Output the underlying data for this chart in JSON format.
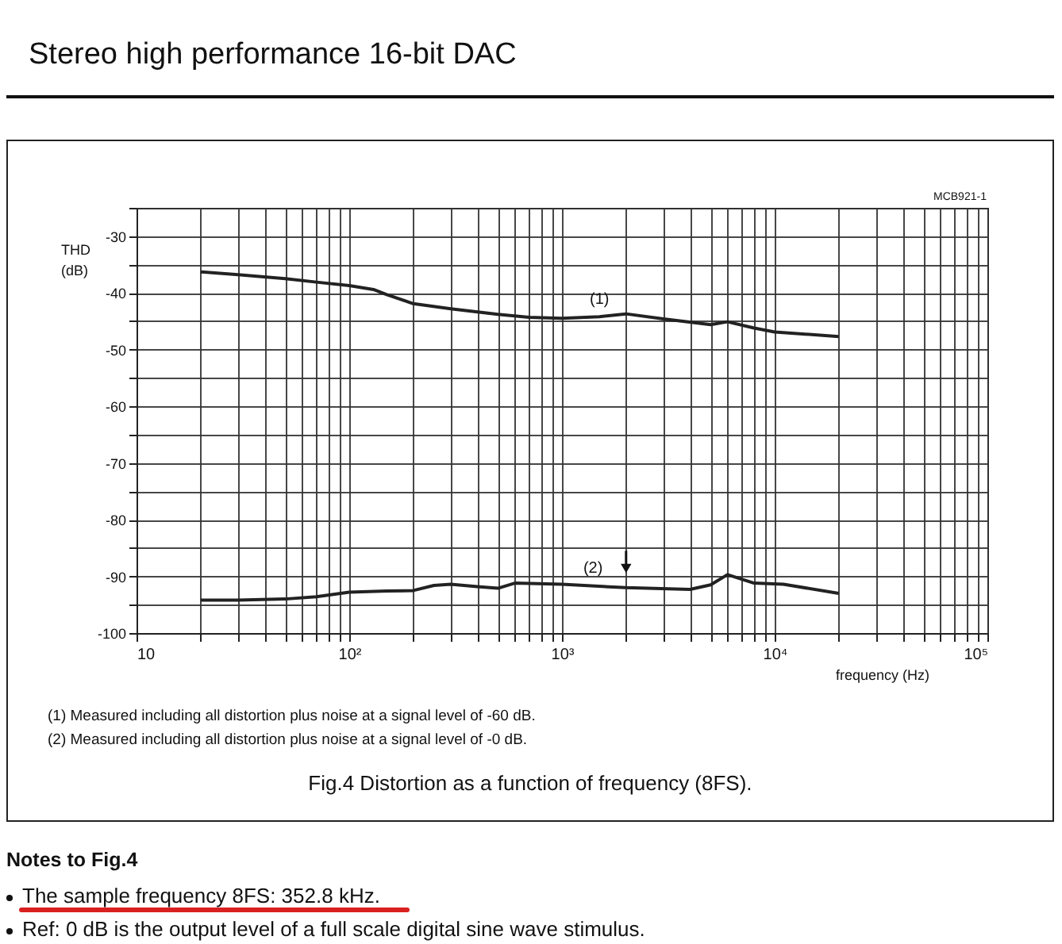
{
  "chart_data": {
    "type": "line",
    "title": "Fig.4  Distortion as a function of frequency (8FS).",
    "xlabel": "frequency (Hz)",
    "ylabel": "THD (dB)",
    "log": "x",
    "grid": true,
    "marker": "none",
    "line_style": "solid",
    "xlim": [
      10,
      100000
    ],
    "ylim": [
      -100,
      -25
    ],
    "xticks": [
      {
        "value": 10,
        "label": "10"
      },
      {
        "value": 20,
        "label": null
      },
      {
        "value": 30,
        "label": null
      },
      {
        "value": 40,
        "label": null
      },
      {
        "value": 50,
        "label": null
      },
      {
        "value": 60,
        "label": null
      },
      {
        "value": 70,
        "label": null
      },
      {
        "value": 80,
        "label": null
      },
      {
        "value": 90,
        "label": null
      },
      {
        "value": 100,
        "label": "10²"
      },
      {
        "value": 200,
        "label": null
      },
      {
        "value": 300,
        "label": null
      },
      {
        "value": 400,
        "label": null
      },
      {
        "value": 500,
        "label": null
      },
      {
        "value": 600,
        "label": null
      },
      {
        "value": 700,
        "label": null
      },
      {
        "value": 800,
        "label": null
      },
      {
        "value": 900,
        "label": null
      },
      {
        "value": 1000,
        "label": "10³"
      },
      {
        "value": 2000,
        "label": null
      },
      {
        "value": 3000,
        "label": null
      },
      {
        "value": 4000,
        "label": null
      },
      {
        "value": 5000,
        "label": null
      },
      {
        "value": 6000,
        "label": null
      },
      {
        "value": 7000,
        "label": null
      },
      {
        "value": 8000,
        "label": null
      },
      {
        "value": 9000,
        "label": null
      },
      {
        "value": 10000,
        "label": "10⁴"
      },
      {
        "value": 20000,
        "label": null
      },
      {
        "value": 30000,
        "label": null
      },
      {
        "value": 40000,
        "label": null
      },
      {
        "value": 50000,
        "label": null
      },
      {
        "value": 60000,
        "label": null
      },
      {
        "value": 70000,
        "label": null
      },
      {
        "value": 80000,
        "label": null
      },
      {
        "value": 90000,
        "label": null
      },
      {
        "value": 100000,
        "label": "10⁵"
      }
    ],
    "yticks": [
      -100,
      {
        "value": -95,
        "label": null
      },
      -90,
      {
        "value": -85,
        "label": null
      },
      -80,
      {
        "value": -75,
        "label": null
      },
      -70,
      {
        "value": -65,
        "label": null
      },
      -60,
      {
        "value": -55,
        "label": null
      },
      -50,
      {
        "value": -45,
        "label": null
      },
      -40,
      {
        "value": -35,
        "label": null
      },
      -30,
      {
        "value": -25,
        "label": null
      }
    ],
    "series": [
      {
        "color": "#222222",
        "x": [
          20,
          30,
          50,
          70,
          100,
          130,
          150,
          200,
          300,
          500,
          700,
          1000,
          1500,
          2000,
          3000,
          5000,
          6000,
          8000,
          10000,
          20000
        ],
        "values": [
          -36.3,
          -36.8,
          -37.5,
          -38.1,
          -38.7,
          -39.4,
          -40.3,
          -41.9,
          -42.8,
          -43.8,
          -44.3,
          -44.5,
          -44.2,
          -43.7,
          -44.6,
          -45.6,
          -45.1,
          -46.2,
          -46.9,
          -47.7
        ]
      },
      {
        "color": "#222222",
        "x": [
          20,
          30,
          50,
          70,
          100,
          150,
          200,
          250,
          300,
          400,
          500,
          600,
          1000,
          2000,
          4000,
          5000,
          6000,
          8000,
          11000,
          20000
        ],
        "values": [
          -94.2,
          -94.2,
          -94,
          -93.6,
          -92.8,
          -92.6,
          -92.5,
          -91.6,
          -91.4,
          -91.8,
          -92.1,
          -91.2,
          -91.4,
          -92,
          -92.3,
          -91.5,
          -89.7,
          -91.2,
          -91.4,
          -93
        ]
      }
    ],
    "annotations": [
      "Stereo high performance 16-bit DAC",
      "MCB921-1",
      "(1)  Measured including all distortion plus noise at a signal level of -60 dB.",
      "(2)  Measured including all distortion plus noise at a signal level of -0 dB.",
      "Notes to Fig.4",
      "The sample frequency 8FS: 352.8 kHz.",
      "Ref: 0 dB is the output level of a full scale digital sine wave stimulus.",
      {
        "text": "(1)",
        "x": 1500,
        "y": -44.2
      },
      {
        "text": "(2)",
        "x": 1400,
        "y": -91.6
      }
    ]
  }
}
